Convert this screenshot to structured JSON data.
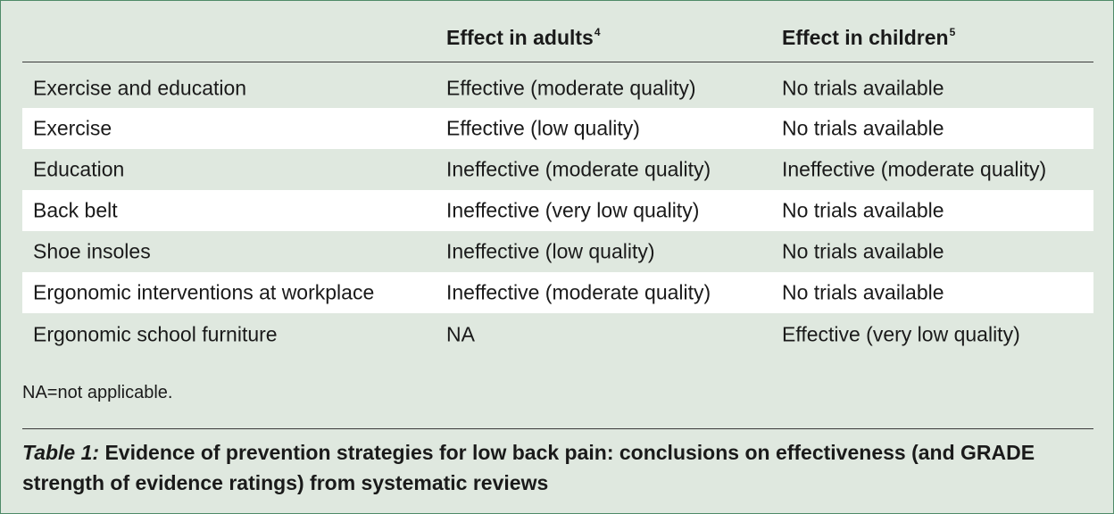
{
  "table": {
    "headers": {
      "col1": "",
      "col2": "Effect in adults",
      "col2_ref": "4",
      "col3": "Effect in children",
      "col3_ref": "5"
    },
    "rows": [
      {
        "strategy": "Exercise and education",
        "adults": "Effective (moderate quality)",
        "children": "No trials available"
      },
      {
        "strategy": "Exercise",
        "adults": "Effective (low quality)",
        "children": "No trials available"
      },
      {
        "strategy": "Education",
        "adults": "Ineffective (moderate quality)",
        "children": "Ineffective (moderate quality)"
      },
      {
        "strategy": "Back belt",
        "adults": "Ineffective (very low quality)",
        "children": "No trials available"
      },
      {
        "strategy": "Shoe insoles",
        "adults": "Ineffective (low quality)",
        "children": "No trials available"
      },
      {
        "strategy": "Ergonomic interventions at workplace",
        "adults": "Ineffective (moderate quality)",
        "children": "No trials available"
      },
      {
        "strategy": "Ergonomic school furniture",
        "adults": "NA",
        "children": "Effective (very low quality)"
      }
    ],
    "footnote": "NA=not applicable."
  },
  "caption": {
    "label": "Table 1:",
    "text": " Evidence of prevention strategies for low back pain: conclusions on effectiveness (and GRADE strength of evidence ratings) from systematic reviews"
  }
}
